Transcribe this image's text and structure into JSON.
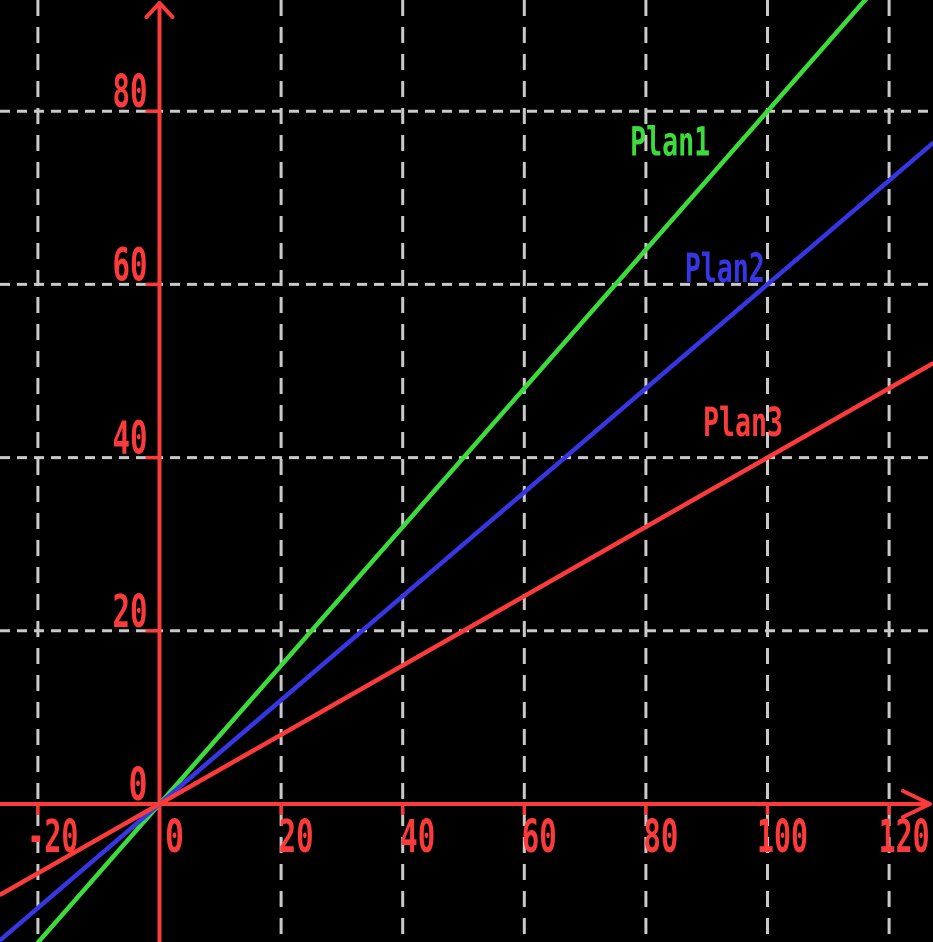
{
  "chart_data": {
    "type": "line",
    "title": "",
    "xlabel": "",
    "ylabel": "",
    "x_ticks": [
      -20,
      0,
      20,
      40,
      60,
      80,
      100,
      120
    ],
    "y_ticks": [
      0,
      20,
      40,
      60,
      80
    ],
    "x_gridlines": [
      -20,
      20,
      40,
      60,
      80,
      100,
      120
    ],
    "y_gridlines": [
      20,
      40,
      60,
      80
    ],
    "xlim": [
      -26.3,
      127.3
    ],
    "ylim": [
      -16,
      93
    ],
    "grid": {
      "on": true,
      "style": "dashed",
      "color": "#c9c9c9"
    },
    "legend_position": "inline-labels",
    "series": [
      {
        "name": "Plan1",
        "color": "#3ddc3d",
        "slope": 0.8,
        "intercept": 0,
        "x": [
          -20,
          0,
          100,
          120
        ],
        "y": [
          -16,
          0,
          80,
          96
        ],
        "label": {
          "text": "Plan1",
          "x": 77.4,
          "y": 74.9
        }
      },
      {
        "name": "Plan2",
        "color": "#3636e4",
        "slope": 0.6,
        "intercept": 0,
        "x": [
          -20,
          0,
          100,
          120
        ],
        "y": [
          -12,
          0,
          60,
          72
        ],
        "label": {
          "text": "Plan2",
          "x": 86.4,
          "y": 60.3
        }
      },
      {
        "name": "Plan3",
        "color": "#fb3b3b",
        "slope": 0.4,
        "intercept": 0,
        "x": [
          -20,
          0,
          100,
          120
        ],
        "y": [
          -8,
          0,
          40,
          48
        ],
        "label": {
          "text": "Plan3",
          "x": 89.4,
          "y": 42.5
        }
      }
    ],
    "colors": {
      "background": "#000000",
      "axis": "#fb3b3b",
      "tick_label": "#fb3b3b",
      "grid": "#c9c9c9"
    },
    "origin_label_x": "0",
    "origin_label_y": "0"
  }
}
